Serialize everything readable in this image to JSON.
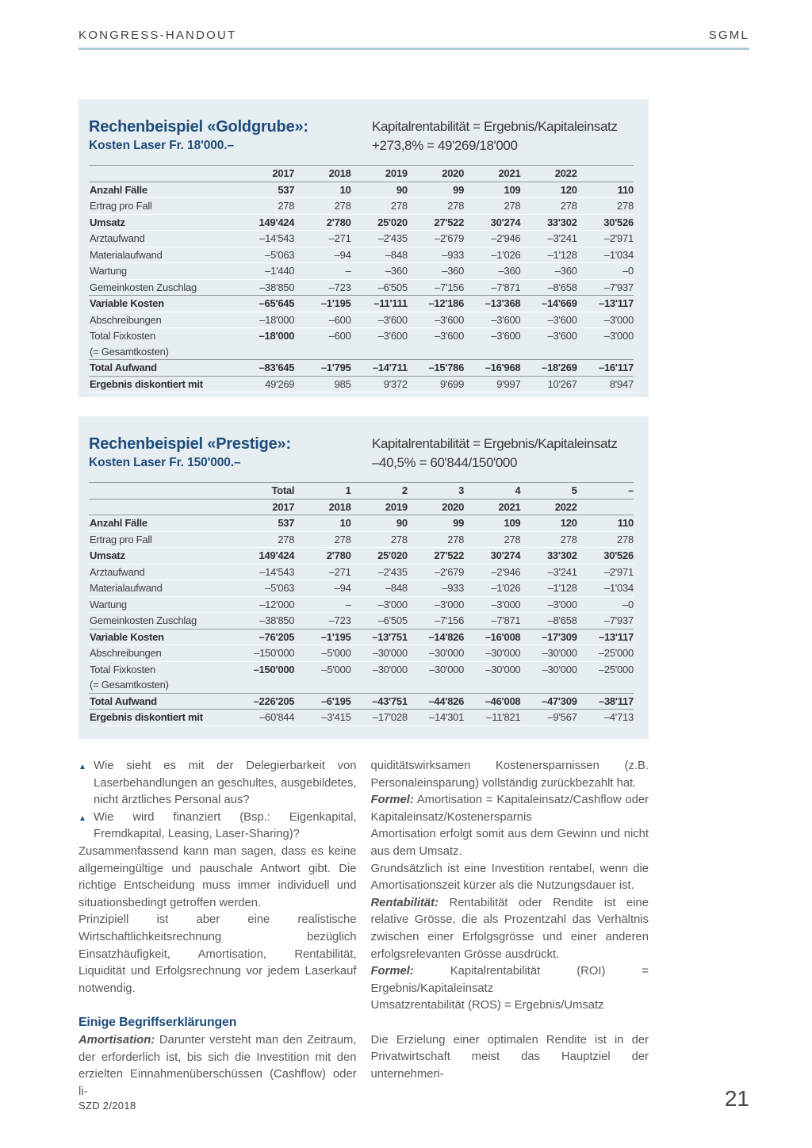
{
  "header": {
    "left": "KONGRESS-HANDOUT",
    "right": "SGML"
  },
  "colors": {
    "accent_navy": "#1e4c7c",
    "panel_background": "#e7eef2",
    "header_rule_blue": "#a9cdd8",
    "table_separator_gray": "#8f979c",
    "body_text_gray": "#57585a"
  },
  "tables": [
    {
      "title": "Rechenbeispiel «Goldgrube»:",
      "subtitle": "Kosten Laser Fr. 18'000.–",
      "formula1": "Kapitalrentabilität = Ergebnis/Kapitaleinsatz",
      "formula2": "+273,8% = 49'269/18'000",
      "header_rows": [
        {
          "cells": [
            "",
            "2017",
            "2018",
            "2019",
            "2020",
            "2021",
            "2022"
          ],
          "sep": "gray"
        }
      ],
      "rows": [
        {
          "label": "Anzahl Fälle",
          "bold": true,
          "sep": "gray",
          "values": [
            "537",
            "10",
            "90",
            "99",
            "109",
            "120",
            "110"
          ]
        },
        {
          "label": "Ertrag pro Fall",
          "values": [
            "278",
            "278",
            "278",
            "278",
            "278",
            "278",
            "278"
          ]
        },
        {
          "label": "Umsatz",
          "bold": true,
          "values": [
            "149'424",
            "2'780",
            "25'020",
            "27'522",
            "30'274",
            "33'302",
            "30'526"
          ]
        },
        {
          "label": "Arztaufwand",
          "values": [
            "–14'543",
            "–271",
            "–2'435",
            "–2'679",
            "–2'946",
            "–3'241",
            "–2'971"
          ]
        },
        {
          "label": "Materialaufwand",
          "values": [
            "–5'063",
            "–94",
            "–848",
            "–933",
            "–1'026",
            "–1'128",
            "–1'034"
          ]
        },
        {
          "label": "Wartung",
          "values": [
            "–1'440",
            "–",
            "–360",
            "–360",
            "–360",
            "–360",
            "–0"
          ]
        },
        {
          "label": "Gemeinkosten Zuschlag",
          "values": [
            "–38'850",
            "–723",
            "–6'505",
            "–7'156",
            "–7'871",
            "–8'658",
            "–7'937"
          ]
        },
        {
          "label": "Variable Kosten",
          "bold": true,
          "sep": "gray",
          "values": [
            "–65'645",
            "–1'195",
            "–11'111",
            "–12'186",
            "–13'368",
            "–14'669",
            "–13'117"
          ]
        },
        {
          "label": "Abschreibungen",
          "values": [
            "–18'000",
            "–600",
            "–3'600",
            "–3'600",
            "–3'600",
            "–3'600",
            "–3'000"
          ]
        },
        {
          "label": "Total Fixkosten",
          "label2": "(= Gesamtkosten)",
          "first_bold": true,
          "values": [
            "–18'000",
            "–600",
            "–3'600",
            "–3'600",
            "–3'600",
            "–3'600",
            "–3'000"
          ]
        },
        {
          "label": "Total Aufwand",
          "bold": true,
          "sep": "gray",
          "values": [
            "–83'645",
            "–1'795",
            "–14'711",
            "–15'786",
            "–16'968",
            "–18'269",
            "–16'117"
          ]
        },
        {
          "label": "Ergebnis diskontiert mit",
          "bold_label": true,
          "sep": "gray",
          "values": [
            "49'269",
            "985",
            "9'372",
            "9'699",
            "9'997",
            "10'267",
            "8'947"
          ]
        }
      ]
    },
    {
      "title": "Rechenbeispiel «Prestige»:",
      "subtitle": "Kosten Laser Fr. 150'000.–",
      "formula1": "Kapitalrentabilität = Ergebnis/Kapitaleinsatz",
      "formula2": "–40,5% = 60'844/150'000",
      "header_rows": [
        {
          "cells": [
            "",
            "Total",
            "1",
            "2",
            "3",
            "4",
            "5",
            "–"
          ],
          "sep": "gray",
          "full": true
        },
        {
          "cells": [
            "",
            "2017",
            "2018",
            "2019",
            "2020",
            "2021",
            "2022"
          ],
          "sep": "gray"
        }
      ],
      "rows": [
        {
          "label": "Anzahl Fälle",
          "bold": true,
          "sep": "gray",
          "values": [
            "537",
            "10",
            "90",
            "99",
            "109",
            "120",
            "110"
          ]
        },
        {
          "label": "Ertrag pro Fall",
          "values": [
            "278",
            "278",
            "278",
            "278",
            "278",
            "278",
            "278"
          ]
        },
        {
          "label": "Umsatz",
          "bold": true,
          "values": [
            "149'424",
            "2'780",
            "25'020",
            "27'522",
            "30'274",
            "33'302",
            "30'526"
          ]
        },
        {
          "label": "Arztaufwand",
          "values": [
            "–14'543",
            "–271",
            "–2'435",
            "–2'679",
            "–2'946",
            "–3'241",
            "–2'971"
          ]
        },
        {
          "label": "Materialaufwand",
          "values": [
            "–5'063",
            "–94",
            "–848",
            "–933",
            "–1'026",
            "–1'128",
            "–1'034"
          ]
        },
        {
          "label": "Wartung",
          "values": [
            "–12'000",
            "–",
            "–3'000",
            "–3'000",
            "–3'000",
            "–3'000",
            "–0"
          ]
        },
        {
          "label": "Gemeinkosten Zuschlag",
          "values": [
            "–38'850",
            "–723",
            "–6'505",
            "–7'156",
            "–7'871",
            "–8'658",
            "–7'937"
          ]
        },
        {
          "label": "Variable Kosten",
          "bold": true,
          "sep": "gray",
          "values": [
            "–76'205",
            "–1'195",
            "–13'751",
            "–14'826",
            "–16'008",
            "–17'309",
            "–13'117"
          ]
        },
        {
          "label": "Abschreibungen",
          "values": [
            "–150'000",
            "–5'000",
            "–30'000",
            "–30'000",
            "–30'000",
            "–30'000",
            "–25'000"
          ]
        },
        {
          "label": "Total Fixkosten",
          "label2": "(= Gesamtkosten)",
          "first_bold": true,
          "values": [
            "–150'000",
            "–5'000",
            "–30'000",
            "–30'000",
            "–30'000",
            "–30'000",
            "–25'000"
          ]
        },
        {
          "label": "Total Aufwand",
          "bold": true,
          "sep": "gray",
          "values": [
            "–226'205",
            "–6'195",
            "–43'751",
            "–44'826",
            "–46'008",
            "–47'309",
            "–38'117"
          ]
        },
        {
          "label": "Ergebnis diskontiert mit",
          "bold_label": true,
          "sep": "gray",
          "values": [
            "–60'844",
            "–3'415",
            "–17'028",
            "–14'301",
            "–11'821",
            "–9'567",
            "–4'713"
          ]
        }
      ]
    }
  ],
  "body": {
    "bullet_char": "▲",
    "left_column": [
      {
        "type": "bullet",
        "text": "Wie sieht es mit der Delegierbarkeit von Laserbehandlungen an geschultes, ausgebildetes, nicht ärztliches Personal aus?"
      },
      {
        "type": "bullet",
        "text": "Wie wird finanziert (Bsp.: Eigenkapital, Fremdkapital, Leasing, Laser-Sharing)?"
      },
      {
        "type": "para",
        "text": "Zusammenfassend kann man sagen, dass es keine allgemeingültige und pauschale Antwort gibt. Die richtige Entscheidung muss immer individuell und situationsbedingt getroffen werden."
      },
      {
        "type": "para",
        "text": "Prinzipiell ist aber eine realistische Wirtschaftlichkeitsrechnung bezüglich Einsatzhäufigkeit, Amortisation, Rentabilität, Liquidität und Erfolgsrechnung vor jedem Laserkauf notwendig."
      },
      {
        "type": "heading",
        "text": "Einige Begriffserklärungen"
      },
      {
        "type": "para",
        "lead": "Amortisation:",
        "text": " Darunter versteht man den Zeitraum, der erforderlich ist, bis sich die Investition mit den erzielten Einnahmenüberschüssen (Cashflow) oder li-"
      }
    ],
    "right_column": [
      {
        "type": "para",
        "text": "quiditätswirksamen Kostenersparnissen (z.B. Personaleinsparung) vollständig zurückbezahlt hat."
      },
      {
        "type": "para",
        "lead": "Formel:",
        "text": " Amortisation = Kapitaleinsatz/Cashflow oder Kapitaleinsatz/Kostenersparnis"
      },
      {
        "type": "para",
        "text": "Amortisation erfolgt somit aus dem Gewinn und nicht aus dem Umsatz."
      },
      {
        "type": "para",
        "text": "Grundsätzlich ist eine Investition rentabel, wenn die Amortisationszeit kürzer als die Nutzungsdauer ist."
      },
      {
        "type": "para",
        "lead": "Rentabilität:",
        "text": " Rentabilität oder Rendite ist eine relative Grösse, die als Prozentzahl das Verhältnis zwischen einer Erfolgsgrösse und einer anderen erfolgsrelevanten Grösse ausdrückt."
      },
      {
        "type": "para",
        "lead": "Formel:",
        "text": " Kapitalrentabilität (ROI) = Ergebnis/Kapitaleinsatz"
      },
      {
        "type": "para",
        "text": "Umsatzrentabilität (ROS) = Ergebnis/Umsatz"
      },
      {
        "type": "spacer"
      },
      {
        "type": "para",
        "text": "Die Erzielung einer optimalen Rendite ist in der Privatwirtschaft meist das Hauptziel der unternehmeri-"
      }
    ]
  },
  "footer": {
    "issue": "SZD 2/2018",
    "page": "21"
  }
}
